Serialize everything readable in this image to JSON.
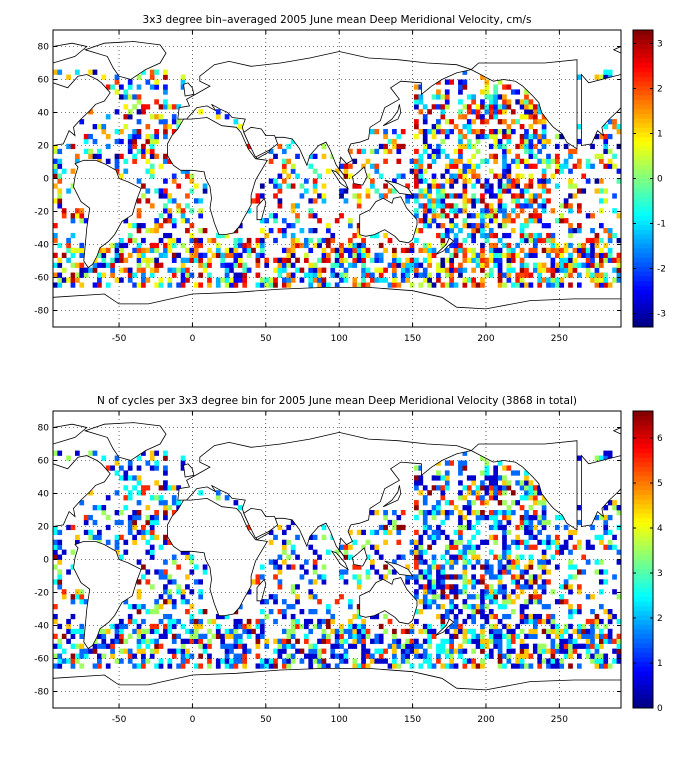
{
  "chart_data": [
    {
      "type": "heatmap",
      "title": "3x3 degree bin–averaged 2005 June mean Deep Meridional Velocity, cm/s",
      "xlabel": "",
      "ylabel": "",
      "xlim": [
        -95,
        292
      ],
      "ylim": [
        -90,
        90
      ],
      "x_ticks": [
        -50,
        0,
        50,
        100,
        150,
        200,
        250
      ],
      "y_ticks": [
        -80,
        -60,
        -40,
        -20,
        0,
        20,
        40,
        60,
        80
      ],
      "grid": true,
      "bin_size_deg": 3,
      "colorscale": "jet",
      "clim": [
        -3.3,
        3.3
      ],
      "colorbar_ticks": [
        -3,
        -2,
        -1,
        0,
        1,
        2,
        3
      ],
      "seed": 11,
      "background": "#ffffff"
    },
    {
      "type": "heatmap",
      "title": "N of cycles per 3x3 degree bin for 2005 June mean Deep Meridional Velocity (3868 in total)",
      "xlabel": "",
      "ylabel": "",
      "xlim": [
        -95,
        292
      ],
      "ylim": [
        -90,
        90
      ],
      "x_ticks": [
        -50,
        0,
        50,
        100,
        150,
        200,
        250
      ],
      "y_ticks": [
        -80,
        -60,
        -40,
        -20,
        0,
        20,
        40,
        60,
        80
      ],
      "grid": true,
      "bin_size_deg": 3,
      "colorscale": "jet",
      "clim": [
        0,
        6.6
      ],
      "colorbar_ticks": [
        0,
        1,
        2,
        3,
        4,
        5,
        6
      ],
      "seed": 11,
      "background": "#ffffff"
    }
  ]
}
